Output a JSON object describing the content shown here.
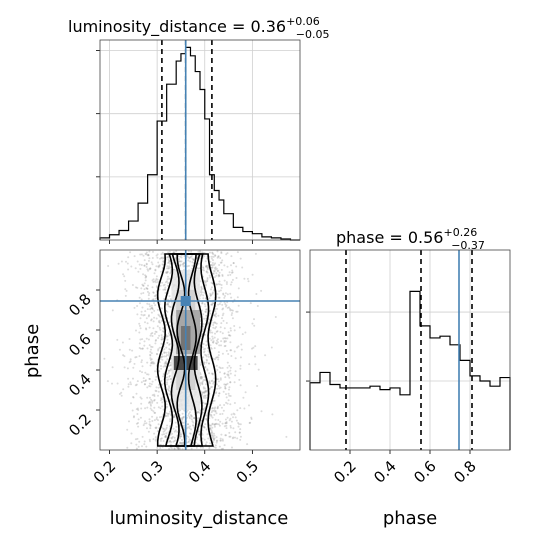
{
  "chart_data": [
    {
      "type": "histogram",
      "panel": "luminosity_distance-marginal",
      "title": {
        "param": "luminosity_distance",
        "median": "0.36",
        "upper": "+0.06",
        "lower": "−0.05"
      },
      "x_range": [
        0.18,
        0.6
      ],
      "x_ticks": [
        0.2,
        0.3,
        0.4,
        0.5
      ],
      "quantiles": [
        0.31,
        0.36,
        0.415
      ],
      "truth": 0.36,
      "bin_edges": [
        0.18,
        0.2,
        0.22,
        0.24,
        0.26,
        0.28,
        0.3,
        0.32,
        0.34,
        0.35,
        0.36,
        0.37,
        0.38,
        0.39,
        0.4,
        0.41,
        0.42,
        0.43,
        0.44,
        0.46,
        0.48,
        0.5,
        0.52,
        0.54,
        0.56,
        0.58,
        0.6
      ],
      "counts": [
        2,
        5,
        9,
        18,
        35,
        62,
        113,
        148,
        170,
        177,
        183,
        175,
        160,
        143,
        115,
        62,
        47,
        38,
        25,
        12,
        8,
        6,
        3,
        2,
        1,
        0
      ]
    },
    {
      "type": "histogram",
      "panel": "phase-marginal",
      "title": {
        "param": "phase",
        "median": "0.56",
        "upper": "+0.26",
        "lower": "−0.37"
      },
      "x_range": [
        0.0,
        1.0
      ],
      "x_ticks": [
        0.2,
        0.4,
        0.6,
        0.8
      ],
      "quantiles": [
        0.18,
        0.555,
        0.81
      ],
      "truth": 0.745,
      "bin_edges": [
        0.0,
        0.05,
        0.1,
        0.15,
        0.2,
        0.25,
        0.3,
        0.35,
        0.4,
        0.45,
        0.5,
        0.55,
        0.6,
        0.65,
        0.7,
        0.75,
        0.8,
        0.85,
        0.9,
        0.95,
        1.0
      ],
      "counts": [
        0.39,
        0.45,
        0.38,
        0.36,
        0.36,
        0.36,
        0.37,
        0.35,
        0.36,
        0.32,
        0.92,
        0.72,
        0.65,
        0.66,
        0.61,
        0.52,
        0.43,
        0.4,
        0.37,
        0.42
      ]
    },
    {
      "type": "scatter",
      "panel": "luminosity_distance-vs-phase",
      "xlabel": "luminosity_distance",
      "ylabel": "phase",
      "x_range": [
        0.18,
        0.6
      ],
      "y_range": [
        0.0,
        1.0
      ],
      "x_ticks": [
        0.2,
        0.3,
        0.4,
        0.5
      ],
      "y_ticks": [
        0.2,
        0.4,
        0.6,
        0.8
      ],
      "truth": [
        0.36,
        0.745
      ],
      "x_center": 0.362,
      "x_sd": 0.055,
      "high_density_phase": [
        0.4,
        0.75
      ]
    }
  ]
}
